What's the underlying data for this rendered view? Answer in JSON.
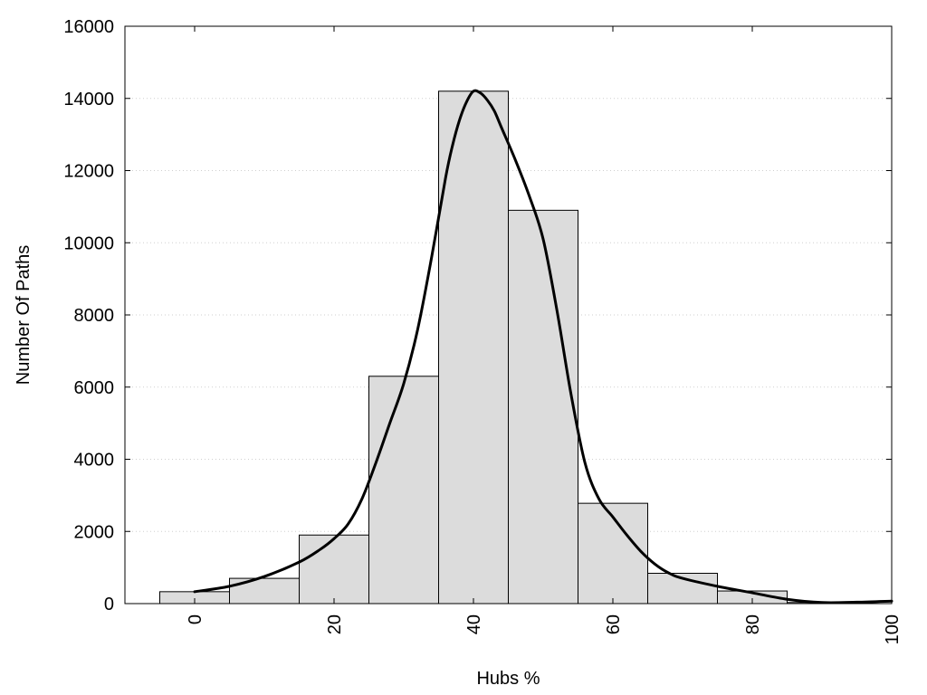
{
  "chart_data": {
    "type": "bar",
    "title": "",
    "xlabel": "Hubs %",
    "ylabel": "Number Of Paths",
    "xlim": [
      -10,
      100
    ],
    "ylim": [
      0,
      16000
    ],
    "xticks": [
      0,
      20,
      40,
      60,
      80,
      100
    ],
    "yticks": [
      0,
      2000,
      4000,
      6000,
      8000,
      10000,
      12000,
      14000,
      16000
    ],
    "grid": "horizontal dotted",
    "legend": "none",
    "bins": [
      {
        "x0": -5,
        "x1": 5,
        "value": 330
      },
      {
        "x0": 5,
        "x1": 15,
        "value": 700
      },
      {
        "x0": 15,
        "x1": 25,
        "value": 1900
      },
      {
        "x0": 25,
        "x1": 35,
        "value": 6300
      },
      {
        "x0": 35,
        "x1": 45,
        "value": 14200
      },
      {
        "x0": 45,
        "x1": 55,
        "value": 10900
      },
      {
        "x0": 55,
        "x1": 65,
        "value": 2780
      },
      {
        "x0": 65,
        "x1": 75,
        "value": 840
      },
      {
        "x0": 75,
        "x1": 85,
        "value": 350
      },
      {
        "x0": 85,
        "x1": 95,
        "value": 30
      }
    ],
    "curve": {
      "x": [
        0,
        5,
        10,
        15,
        18,
        20,
        22,
        24,
        26,
        28,
        30,
        32,
        34,
        36,
        37,
        38,
        39,
        40,
        41,
        42,
        43,
        44,
        46,
        48,
        50,
        52,
        54,
        56,
        58,
        60,
        62,
        64,
        66,
        68,
        70,
        75,
        80,
        85,
        90,
        95,
        100
      ],
      "y": [
        330,
        480,
        750,
        1150,
        1500,
        1800,
        2200,
        2900,
        3900,
        5000,
        6100,
        7600,
        9600,
        11800,
        12700,
        13400,
        13900,
        14200,
        14150,
        13950,
        13650,
        13200,
        12300,
        11300,
        10100,
        8100,
        5800,
        3900,
        2900,
        2400,
        1900,
        1450,
        1100,
        850,
        700,
        480,
        300,
        120,
        30,
        40,
        70
      ]
    },
    "colors": {
      "bar_fill": "#dcdcdc",
      "bar_stroke": "#000000",
      "curve": "#000000",
      "grid": "#cfcfcf"
    }
  }
}
